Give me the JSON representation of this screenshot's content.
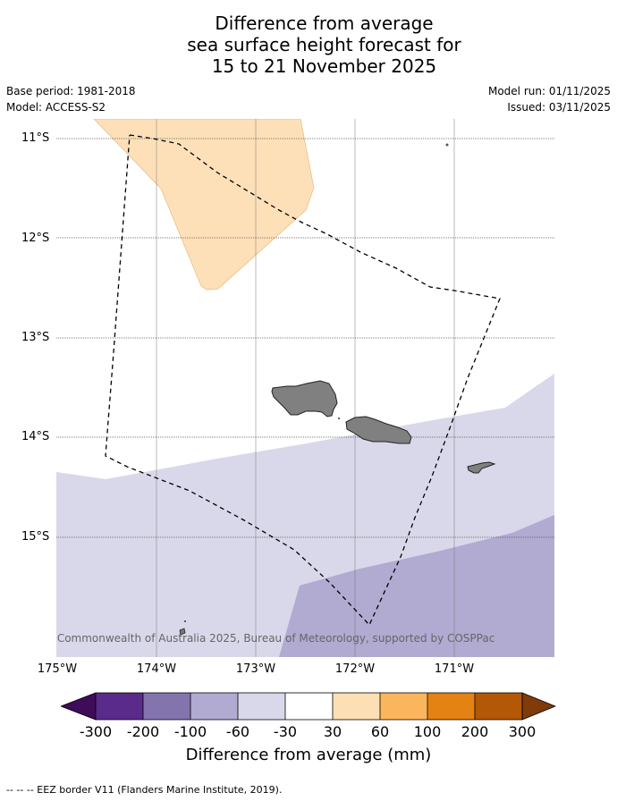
{
  "title": {
    "line1": "Difference from average",
    "line2": "sea surface height forecast for",
    "line3": "15 to 21 November 2025"
  },
  "meta": {
    "base_period": "Base period: 1981-2018",
    "model": "Model: ACCESS-S2",
    "model_run": "Model run: 01/11/2025",
    "issued": "Issued: 03/11/2025"
  },
  "axes": {
    "lat_labels": [
      "11°S",
      "12°S",
      "13°S",
      "14°S",
      "15°S"
    ],
    "lon_labels": [
      "175°W",
      "174°W",
      "173°W",
      "172°W",
      "171°W"
    ]
  },
  "credit": "© Commonwealth of Australia 2025, Bureau of Meteorology, supported by COSPPac",
  "colorbar": {
    "label": "Difference from average (mm)",
    "ticks": [
      "-300",
      "-200",
      "-100",
      "-60",
      "-30",
      "30",
      "60",
      "100",
      "200",
      "300"
    ],
    "colors": [
      "#3f0c5a",
      "#5a2b8a",
      "#8474ae",
      "#b1aad1",
      "#d9d8ea",
      "#ffffff",
      "#fddfb5",
      "#fbb65d",
      "#e48213",
      "#b35806",
      "#7f3b08"
    ]
  },
  "footer": "--  --  -- EEZ border V11 (Flanders Marine Institute, 2019).",
  "chart_data": {
    "type": "map",
    "region": "Samoa",
    "lon_range": [
      -175,
      -170
    ],
    "lat_range": [
      -16.2,
      -10.8
    ],
    "anomaly_zones": [
      {
        "range_mm": "30 to 60",
        "area": "north-west of the EEZ"
      },
      {
        "range_mm": "-60 to -30",
        "area": "southern part of the map"
      },
      {
        "range_mm": "-100 to -60",
        "area": "south-east corner"
      }
    ]
  }
}
